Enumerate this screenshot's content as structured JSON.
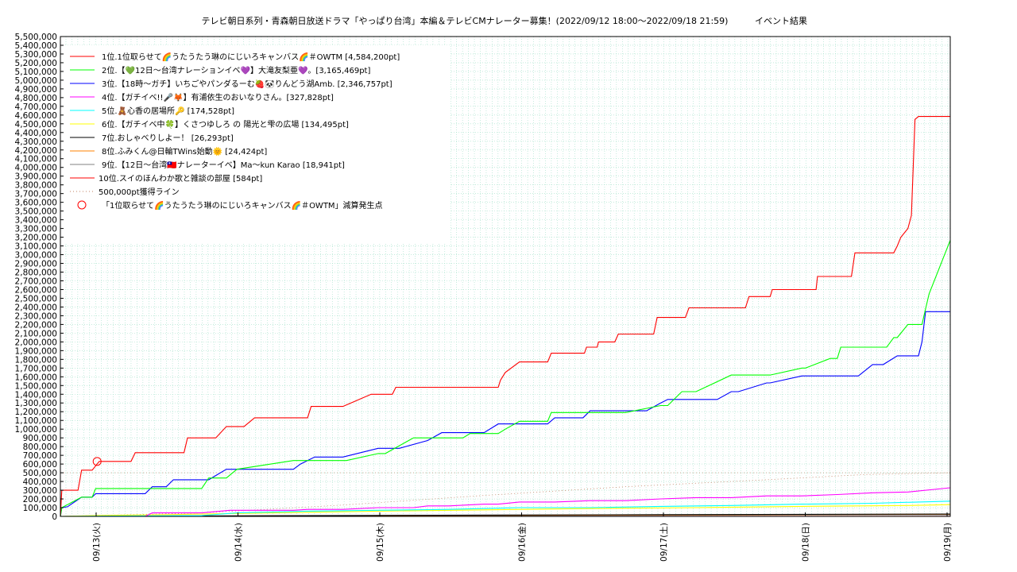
{
  "chart_data": {
    "type": "line",
    "title": "テレビ朝日系列・青森朝日放送ドラマ「やっぱり台湾」本編＆テレビCMナレーター募集！(2022/09/12 18:00～2022/09/18 21:59)",
    "title_suffix": "イベント結果",
    "xlabel": "",
    "ylabel": "",
    "x_range": [
      "2022-09-12 18:00",
      "2022-09-19 00:00"
    ],
    "ylim": [
      0,
      5500000
    ],
    "y_ticks": [
      "0",
      "100,000",
      "200,000",
      "300,000",
      "400,000",
      "500,000",
      "600,000",
      "700,000",
      "800,000",
      "900,000",
      "1,000,000",
      "1,100,000",
      "1,200,000",
      "1,300,000",
      "1,400,000",
      "1,500,000",
      "1,600,000",
      "1,700,000",
      "1,800,000",
      "1,900,000",
      "2,000,000",
      "2,100,000",
      "2,200,000",
      "2,300,000",
      "2,400,000",
      "2,500,000",
      "2,600,000",
      "2,700,000",
      "2,800,000",
      "2,900,000",
      "3,000,000",
      "3,100,000",
      "3,200,000",
      "3,300,000",
      "3,400,000",
      "3,500,000",
      "3,600,000",
      "3,700,000",
      "3,800,000",
      "3,900,000",
      "4,000,000",
      "4,100,000",
      "4,200,000",
      "4,300,000",
      "4,400,000",
      "4,500,000",
      "4,600,000",
      "4,700,000",
      "4,800,000",
      "4,900,000",
      "5,000,000",
      "5,100,000",
      "5,200,000",
      "5,300,000",
      "5,400,000",
      "5,500,000"
    ],
    "x_ticks": [
      "09/13(火)",
      "09/14(水)",
      "09/15(木)",
      "09/16(金)",
      "09/17(土)",
      "09/18(日)",
      "09/19(月)"
    ],
    "grid": true,
    "legend_position": "top-left",
    "colors": {
      "rank1": "#ff0000",
      "rank2": "#00ff00",
      "rank3": "#0000ff",
      "rank4": "#ff00ff",
      "rank5": "#00ffff",
      "rank6": "#ffff00",
      "rank7": "#000000",
      "rank8": "#ff8000",
      "rank9": "#808080",
      "rank10": "#ff0000",
      "threshold": "#c08060",
      "grid": "#a0e0c8"
    },
    "series": [
      {
        "name": "1位.1位取らせて🌈うたうたう琳のにじいろキャンバス🌈＃OWTM [4,584,200pt]",
        "color": "#ff0000",
        "x": [
          0,
          0.02,
          0.15,
          0.25,
          0.3,
          0.45,
          0.55,
          0.8,
          1.0,
          1.06,
          1.6,
          1.75,
          1.8,
          2.2,
          2.35,
          2.6,
          2.75,
          3.2,
          3.5,
          3.55,
          4.0,
          4.4,
          4.7,
          4.75,
          5.0,
          5.1,
          5.2,
          5.7,
          5.75,
          6.2,
          6.23,
          6.3,
          6.5,
          6.55,
          6.9,
          6.95,
          7.4,
          7.42,
          7.45,
          7.6,
          7.62,
          7.85,
          7.9,
          8.4,
          8.45,
          8.85,
          8.9,
          9.7,
          9.75,
          10.05,
          10.08,
          10.4,
          10.45,
          10.7,
          10.72,
          10.8,
          10.85,
          11.2,
          11.25,
          11.6,
          11.65,
          11.8,
          11.85,
          11.9,
          12.0,
          12.05,
          12.1,
          12.15,
          12.2,
          12.5,
          12.55,
          12.6
        ],
        "values": [
          0,
          300000,
          300000,
          300000,
          530000,
          530000,
          630000,
          630000,
          630000,
          730000,
          730000,
          730000,
          900000,
          900000,
          1030000,
          1030000,
          1130000,
          1130000,
          1130000,
          1260000,
          1260000,
          1400000,
          1400000,
          1480000,
          1480000,
          1480000,
          1480000,
          1480000,
          1480000,
          1480000,
          1560000,
          1650000,
          1770000,
          1770000,
          1770000,
          1870000,
          1870000,
          1870000,
          1940000,
          1940000,
          2000000,
          2000000,
          2090000,
          2090000,
          2280000,
          2280000,
          2390000,
          2390000,
          2520000,
          2520000,
          2600000,
          2600000,
          2600000,
          2600000,
          2750000,
          2750000,
          2750000,
          2750000,
          3020000,
          3020000,
          3020000,
          3020000,
          3100000,
          3200000,
          3300000,
          3450000,
          4550000,
          4584200,
          4584200,
          4584200,
          4584200,
          4584200
        ]
      },
      {
        "name": "2位.【💚12日～台湾ナレーションイベ💜】大滝友梨亜💜。[3,165,469pt]",
        "color": "#00ff00",
        "x": [
          0,
          0.02,
          0.3,
          0.45,
          0.5,
          1.2,
          1.6,
          2.0,
          2.1,
          2.35,
          2.5,
          3.3,
          3.6,
          3.75,
          4.0,
          4.05,
          4.5,
          4.6,
          4.8,
          5.0,
          5.1,
          5.2,
          5.6,
          5.7,
          5.8,
          6.2,
          6.3,
          6.5,
          6.9,
          6.95,
          7.2,
          7.4,
          7.6,
          8.0,
          8.5,
          8.6,
          8.8,
          9.0,
          9.5,
          9.55,
          10.0,
          10.05,
          10.5,
          10.55,
          10.9,
          11.0,
          11.05,
          11.5,
          11.55,
          11.7,
          11.8,
          11.85,
          12.0,
          12.2,
          12.3,
          12.6
        ],
        "values": [
          0,
          100000,
          220000,
          220000,
          320000,
          320000,
          320000,
          320000,
          440000,
          440000,
          540000,
          640000,
          640000,
          640000,
          640000,
          640000,
          720000,
          720000,
          810000,
          900000,
          900000,
          900000,
          900000,
          900000,
          950000,
          950000,
          1000000,
          1090000,
          1090000,
          1190000,
          1190000,
          1190000,
          1190000,
          1190000,
          1270000,
          1270000,
          1430000,
          1430000,
          1620000,
          1620000,
          1620000,
          1620000,
          1700000,
          1700000,
          1810000,
          1810000,
          1940000,
          1940000,
          1940000,
          1940000,
          2050000,
          2050000,
          2200000,
          2200000,
          2550000,
          3165469
        ]
      },
      {
        "name": "3位.【18時～ガチ】いちごやパンダるーむ🍓🐼りんどう湖Amb. [2,346,757pt]",
        "color": "#0000ff",
        "x": [
          0,
          0.02,
          0.1,
          0.3,
          0.45,
          0.5,
          1.2,
          1.3,
          1.5,
          1.6,
          2.0,
          2.1,
          2.35,
          3.3,
          3.4,
          3.6,
          4.0,
          4.5,
          4.6,
          4.8,
          5.2,
          5.4,
          5.6,
          6.0,
          6.2,
          6.5,
          6.9,
          7.0,
          7.4,
          7.5,
          7.8,
          8.0,
          8.3,
          8.5,
          8.6,
          9.0,
          9.3,
          9.5,
          9.6,
          10.0,
          10.05,
          10.5,
          10.55,
          10.9,
          11.1,
          11.3,
          11.5,
          11.65,
          11.85,
          12.0,
          12.05,
          12.1,
          12.15,
          12.2,
          12.25,
          12.6
        ],
        "values": [
          0,
          100000,
          110000,
          220000,
          220000,
          260000,
          260000,
          340000,
          340000,
          420000,
          420000,
          420000,
          540000,
          540000,
          600000,
          680000,
          680000,
          780000,
          780000,
          780000,
          870000,
          960000,
          960000,
          960000,
          1060000,
          1060000,
          1060000,
          1130000,
          1130000,
          1210000,
          1210000,
          1210000,
          1210000,
          1300000,
          1340000,
          1340000,
          1340000,
          1430000,
          1430000,
          1530000,
          1530000,
          1610000,
          1610000,
          1610000,
          1610000,
          1610000,
          1740000,
          1740000,
          1840000,
          1840000,
          1840000,
          1840000,
          1840000,
          2000000,
          2346757,
          2346757
        ]
      },
      {
        "name": "4位.【ガチイベ!!🎤🦊】有浦依生のおいなりさん。[327,828pt]",
        "color": "#ff00ff",
        "x": [
          0,
          1.2,
          1.3,
          2.0,
          2.4,
          3.3,
          3.5,
          4.0,
          4.5,
          5.0,
          5.2,
          5.5,
          6.0,
          6.2,
          6.5,
          7.0,
          7.5,
          8.0,
          8.5,
          9.0,
          9.5,
          10.0,
          10.5,
          11.0,
          11.5,
          12.0,
          12.6
        ],
        "values": [
          0,
          0,
          40000,
          40000,
          70000,
          70000,
          80000,
          80000,
          100000,
          100000,
          120000,
          120000,
          140000,
          140000,
          165000,
          165000,
          180000,
          180000,
          200000,
          215000,
          215000,
          235000,
          235000,
          250000,
          270000,
          280000,
          327828
        ]
      },
      {
        "name": "5位.🧸心香の居場所🔑 [174,528pt]",
        "color": "#00ffff",
        "x": [
          0,
          2.0,
          2.5,
          3.5,
          4.5,
          5.5,
          6.5,
          7.5,
          8.5,
          9.5,
          10.5,
          11.5,
          12.6
        ],
        "values": [
          0,
          10000,
          40000,
          60000,
          70000,
          80000,
          100000,
          100000,
          115000,
          125000,
          140000,
          150000,
          174528
        ]
      },
      {
        "name": "6位.【ガチイベ中🍀】くさつゆしろ の 陽光と雫の広場 [134,495pt]",
        "color": "#ffff00",
        "x": [
          0,
          0.5,
          1.5,
          3.0,
          4.5,
          6.0,
          7.5,
          9.0,
          10.5,
          12.0,
          12.6
        ],
        "values": [
          0,
          10000,
          20000,
          40000,
          60000,
          75000,
          90000,
          100000,
          115000,
          125000,
          134495
        ]
      },
      {
        "name": "7位.おしゃべりしよー！ [26,293pt]",
        "color": "#000000",
        "x": [
          0,
          4.0,
          8.5,
          12.6
        ],
        "values": [
          0,
          10000,
          20000,
          26293
        ]
      },
      {
        "name": "8位.ふみくん@日輪TWins始動🌞 [24,424pt]",
        "color": "#ff8000",
        "x": [
          0,
          6.0,
          12.6
        ],
        "values": [
          0,
          12000,
          24424
        ]
      },
      {
        "name": "9位.【12日～台湾🇹🇼ナレーターイベ】Ma～kun Karao [18,941pt]",
        "color": "#808080",
        "x": [
          0,
          6.0,
          12.6
        ],
        "values": [
          0,
          9000,
          18941
        ]
      },
      {
        "name": "10位.スイのほんわか歌と雑談の部屋 [584pt]",
        "color": "#ff0000",
        "x": [
          0,
          12.6
        ],
        "values": [
          0,
          584
        ]
      }
    ],
    "threshold": {
      "name": "500,000pt獲得ライン",
      "value": 500000,
      "color": "#c08060"
    },
    "marker": {
      "name": "「1位取らせて🌈うたうたう琳のにじいろキャンバス🌈＃OWTM」減算発生点",
      "x": 0.52,
      "y": 630000,
      "color": "#ff0000"
    }
  }
}
